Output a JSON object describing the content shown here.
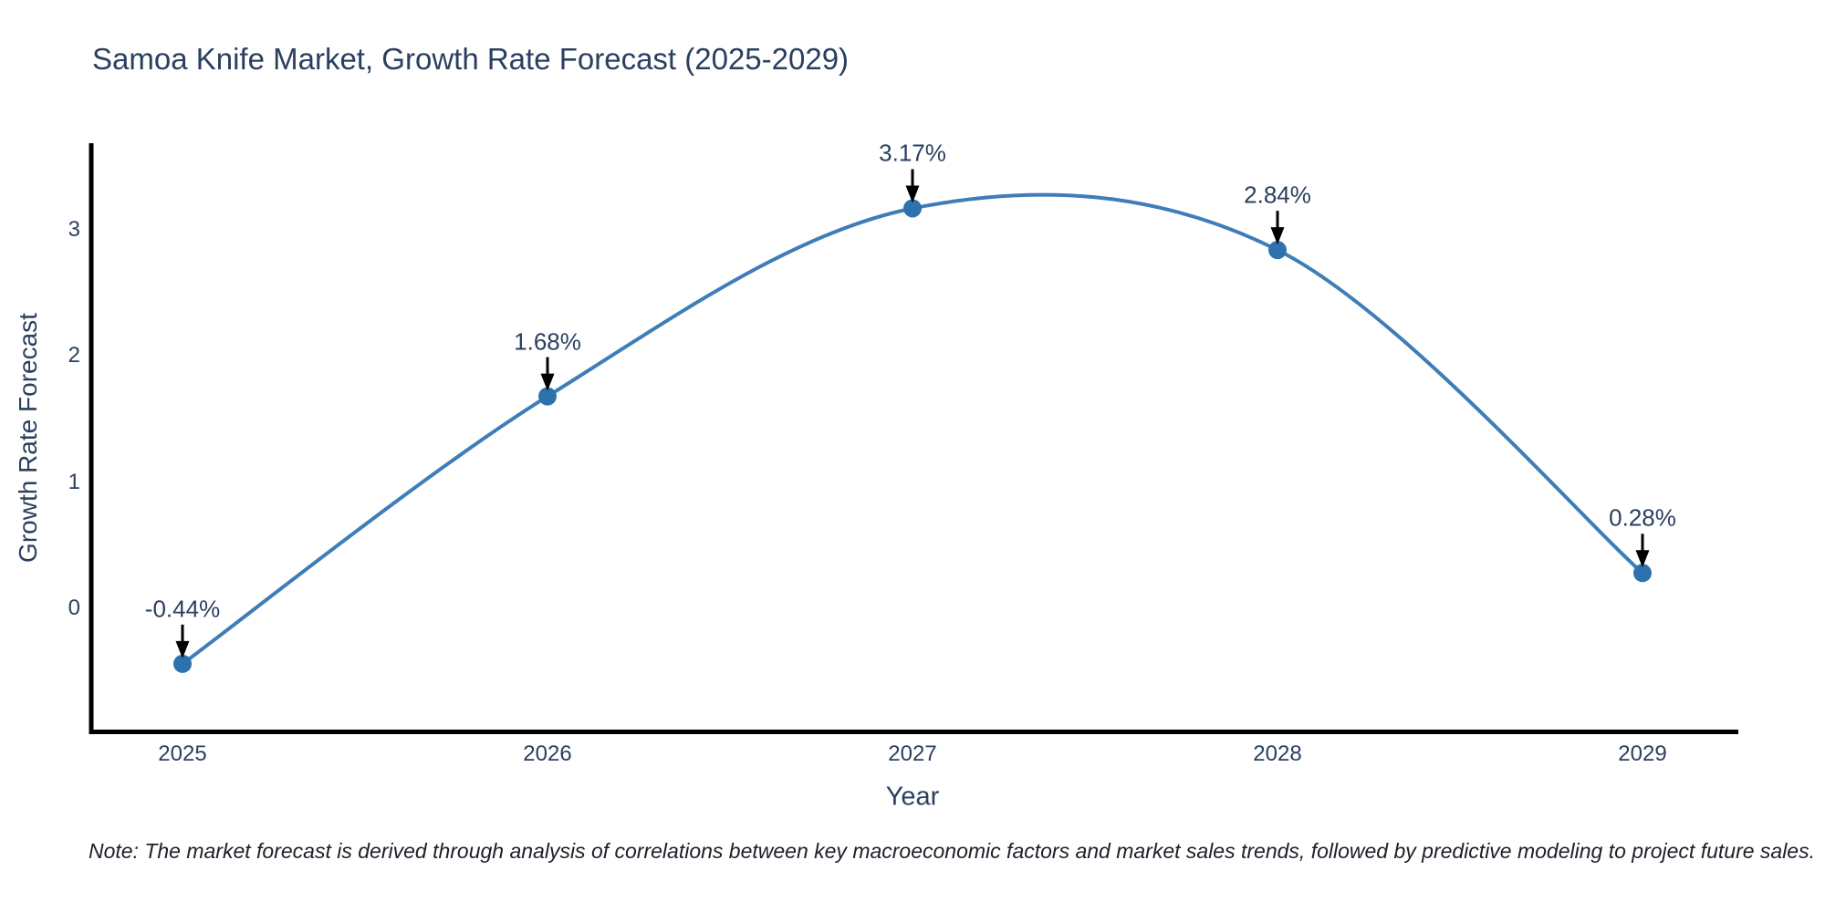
{
  "chart_data": {
    "type": "line",
    "line_shape": "spline",
    "title": "Samoa Knife Market, Growth Rate Forecast (2025-2029)",
    "xlabel": "Year",
    "ylabel": "Growth Rate Forecast",
    "x": [
      2025,
      2026,
      2027,
      2028,
      2029
    ],
    "series": [
      {
        "name": "Growth Rate Forecast",
        "values": [
          -0.44,
          1.68,
          3.17,
          2.84,
          0.28
        ]
      }
    ],
    "point_labels": [
      "-0.44%",
      "1.68%",
      "3.17%",
      "2.84%",
      "0.28%"
    ],
    "x_tick_labels": [
      "2025",
      "2026",
      "2027",
      "2028",
      "2029"
    ],
    "y_tick_labels": [
      "0",
      "1",
      "2",
      "3"
    ],
    "y_tick_values": [
      0,
      1,
      2,
      3
    ],
    "xlim": [
      2024.75,
      2029.26
    ],
    "ylim": [
      -0.98,
      3.67
    ],
    "grid": false,
    "legend_position": "none",
    "line_color": "#3e7db7",
    "marker_color": "#2e72ad",
    "arrow_color": "#000000"
  },
  "footnote": "Note: The market forecast is derived through analysis of correlations between key macroeconomic factors and market sales trends, followed by predictive modeling to project future sales.",
  "colors": {
    "background": "#ffffff",
    "title": "#2a3f5f",
    "axis_text": "#2a3f5f",
    "annotation_text": "#2a3f5f",
    "axis_line": "#000000",
    "note_text": "#20202a"
  }
}
